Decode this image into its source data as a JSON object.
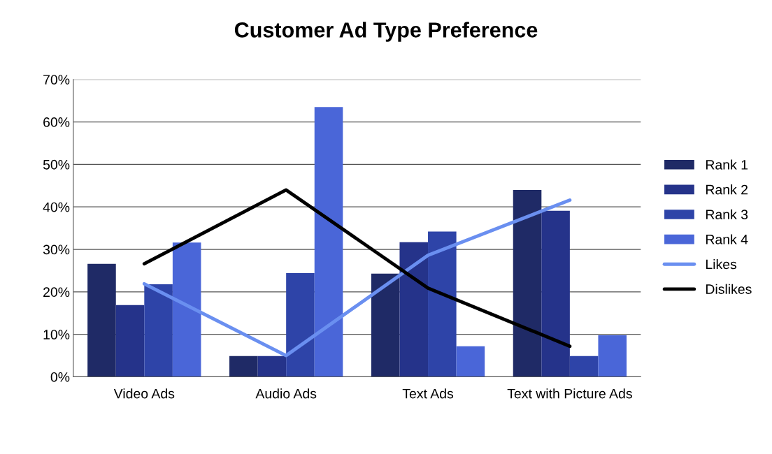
{
  "chart_data": {
    "type": "bar",
    "title": "Customer Ad Type Preference",
    "categories": [
      "Video Ads",
      "Audio Ads",
      "Text Ads",
      "Text with Picture Ads"
    ],
    "series": [
      {
        "name": "Rank 1",
        "color": "#1f2a66",
        "values": [
          26.6,
          4.9,
          24.3,
          44.0
        ]
      },
      {
        "name": "Rank 2",
        "color": "#25338a",
        "values": [
          16.9,
          4.9,
          31.7,
          39.1
        ]
      },
      {
        "name": "Rank 3",
        "color": "#2e44a8",
        "values": [
          21.8,
          24.4,
          34.2,
          4.9
        ]
      },
      {
        "name": "Rank 4",
        "color": "#4a66d8",
        "values": [
          31.6,
          63.5,
          7.2,
          9.8
        ]
      },
      {
        "name": "Likes",
        "color": "#6a8ff0",
        "type": "line",
        "values": [
          21.9,
          5.0,
          28.6,
          41.6
        ]
      },
      {
        "name": "Dislikes",
        "color": "#000000",
        "type": "line",
        "values": [
          26.6,
          44.0,
          20.9,
          7.2
        ]
      }
    ],
    "ylim": [
      0,
      70
    ],
    "yticks": [
      {
        "value": 0,
        "label": "0%"
      },
      {
        "value": 10,
        "label": "10%"
      },
      {
        "value": 20,
        "label": "20%"
      },
      {
        "value": 30,
        "label": "30%"
      },
      {
        "value": 40,
        "label": "40%"
      },
      {
        "value": 50,
        "label": "50%"
      },
      {
        "value": 60,
        "label": "60%"
      },
      {
        "value": 70,
        "label": "70%"
      }
    ],
    "grid": "y",
    "legend": "right"
  }
}
